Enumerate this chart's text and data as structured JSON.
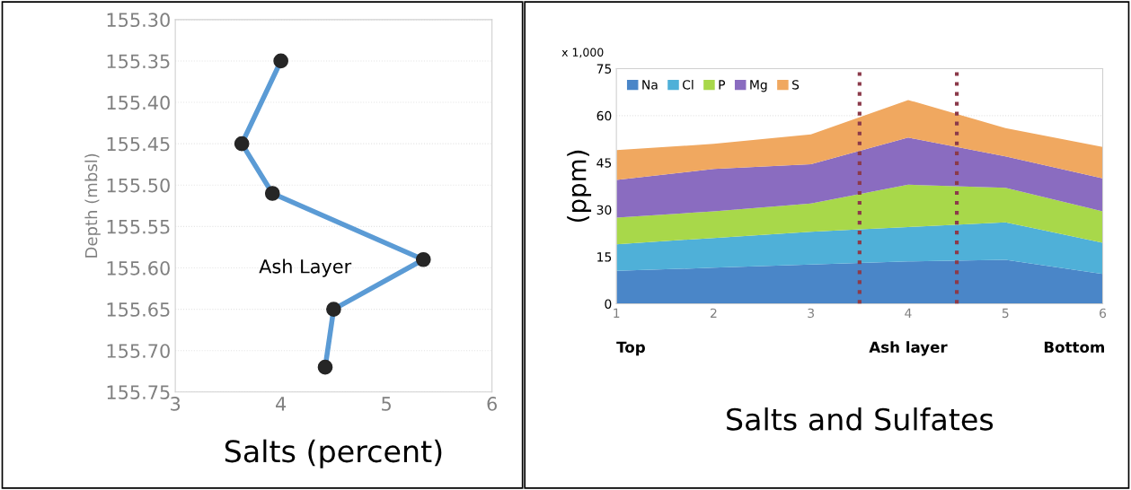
{
  "chart_data": [
    {
      "type": "line",
      "xlabel": "Salts (percent)",
      "ylabel": "Depth (mbsl)",
      "series": [
        {
          "color": "#5b9bd5",
          "x": [
            4.0,
            3.63,
            3.92,
            5.35,
            4.5,
            4.42
          ],
          "values": [
            155.35,
            155.45,
            155.51,
            155.59,
            155.65,
            155.72
          ]
        }
      ],
      "xlim": [
        3,
        6
      ],
      "xticks": [
        3,
        4,
        5,
        6
      ],
      "ylim": [
        155.75,
        155.3
      ],
      "yticks": [
        {
          "value": 155.3,
          "label": "155.30"
        },
        {
          "value": 155.35,
          "label": "155.35"
        },
        {
          "value": 155.4,
          "label": "155.40"
        },
        {
          "value": 155.45,
          "label": "155.45"
        },
        {
          "value": 155.5,
          "label": "155.50"
        },
        {
          "value": 155.55,
          "label": "155.55"
        },
        {
          "value": 155.6,
          "label": "155.60"
        },
        {
          "value": 155.65,
          "label": "155.65"
        },
        {
          "value": 155.7,
          "label": "155.70"
        },
        {
          "value": 155.75,
          "label": "155.75"
        }
      ],
      "grid": "y",
      "marker": "circle",
      "line_style": "solid",
      "annotations": [
        "Ash Layer"
      ]
    },
    {
      "type": "area",
      "stacked": true,
      "xlabel": "Salts and Sulfates",
      "ylabel": "(ppm)",
      "x": [
        1,
        2,
        3,
        4,
        5,
        6
      ],
      "series": [
        {
          "name": "Na",
          "color": "#4a86c8",
          "values": [
            10.5,
            11.5,
            12.5,
            13.5,
            14,
            9.5
          ]
        },
        {
          "name": "Cl",
          "color": "#4fb0d8",
          "values": [
            8.5,
            9.5,
            10.5,
            11,
            12,
            10
          ]
        },
        {
          "name": "P",
          "color": "#a8d84a",
          "values": [
            8.5,
            8.5,
            9,
            13.5,
            11,
            10
          ]
        },
        {
          "name": "Mg",
          "color": "#8a6cc0",
          "values": [
            12,
            13.5,
            12.5,
            15,
            10,
            10.5
          ]
        },
        {
          "name": "S",
          "color": "#f0a860",
          "values": [
            9.5,
            8,
            9.5,
            12,
            9,
            10
          ]
        }
      ],
      "xlim": [
        1,
        6
      ],
      "xticks": [
        1,
        2,
        3,
        4,
        5,
        6
      ],
      "ylim": [
        0,
        75
      ],
      "yticks": [
        0,
        15,
        30,
        45,
        60,
        75
      ],
      "grid": "y",
      "legend": "top left",
      "ref_lines": [
        {
          "axis": "x",
          "value": 3.5,
          "color": "#8b3a4a",
          "line_style": "dotted"
        },
        {
          "axis": "x",
          "value": 4.5,
          "color": "#8b3a4a",
          "line_style": "dotted"
        }
      ],
      "annotations": [
        "x 1,000",
        "Top",
        "Ash layer",
        "Bottom"
      ]
    }
  ]
}
